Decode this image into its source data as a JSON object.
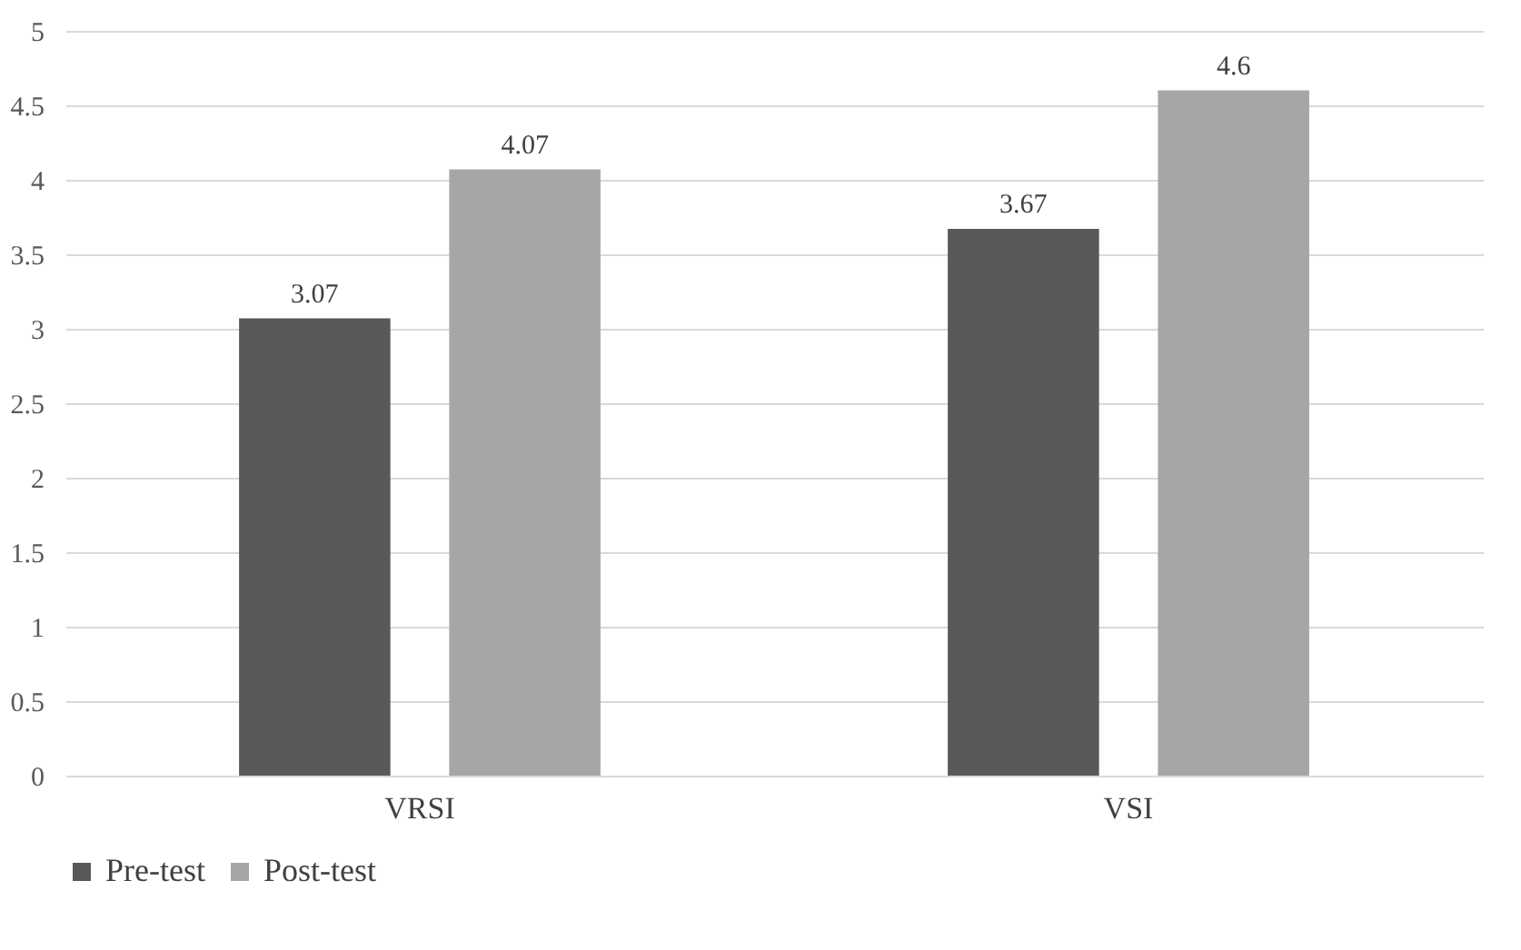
{
  "chart_data": {
    "type": "bar",
    "categories": [
      "VRSI",
      "VSI"
    ],
    "series": [
      {
        "name": "Pre-test",
        "color": "#595959",
        "values": [
          3.07,
          3.67
        ]
      },
      {
        "name": "Post-test",
        "color": "#a6a6a6",
        "values": [
          4.07,
          4.6
        ]
      }
    ],
    "ylim": [
      0,
      5
    ],
    "yticks": [
      0,
      0.5,
      1,
      1.5,
      2,
      2.5,
      3,
      3.5,
      4,
      4.5,
      5
    ],
    "grid": "y",
    "legend": "bottom",
    "data_labels": true
  }
}
